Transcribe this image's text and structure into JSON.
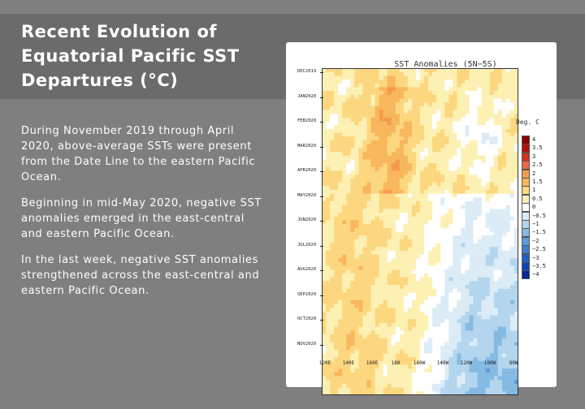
{
  "slide": {
    "title_lines": [
      "Recent Evolution of",
      "Equatorial Pacific SST",
      "Departures (°C)"
    ],
    "bullets": [
      "During November 2019 through April 2020, above-average SSTs were present from the Date Line to the eastern Pacific Ocean.",
      "Beginning in mid-May 2020, negative SST anomalies emerged in the east-central and eastern Pacific Ocean.",
      "In the last week, negative SST anomalies strengthened across the east-central and eastern Pacific Ocean."
    ]
  },
  "figure": {
    "title": "SST Anomalies (5N−5S)",
    "legend_title": "Deg. C",
    "y_labels": [
      "DEC2019",
      "JAN2020",
      "FEB2020",
      "MAR2020",
      "APR2020",
      "MAY2020",
      "JUN2020",
      "JUL2020",
      "AUG2020",
      "SEP2020",
      "OCT2020",
      "NOV2020"
    ],
    "x_labels": [
      "120E",
      "140E",
      "160E",
      "180",
      "160W",
      "140W",
      "120W",
      "100W",
      "80W"
    ],
    "legend": [
      {
        "label": "4",
        "color": "#8b0000"
      },
      {
        "label": "3.5",
        "color": "#b40d0d"
      },
      {
        "label": "3",
        "color": "#d7301f"
      },
      {
        "label": "2.5",
        "color": "#ef6548"
      },
      {
        "label": "2",
        "color": "#f59a4f"
      },
      {
        "label": "1.5",
        "color": "#f8b75c"
      },
      {
        "label": "1",
        "color": "#fcd77f"
      },
      {
        "label": "0.5",
        "color": "#fdf0b3"
      },
      {
        "label": "0",
        "color": "#ffffff"
      },
      {
        "label": "−0.5",
        "color": "#dcecf7"
      },
      {
        "label": "−1",
        "color": "#b3d6ee"
      },
      {
        "label": "−1.5",
        "color": "#85bae3"
      },
      {
        "label": "−2",
        "color": "#5a9bd8"
      },
      {
        "label": "−2.5",
        "color": "#3b7fcf"
      },
      {
        "label": "−3",
        "color": "#1f5fc4"
      },
      {
        "label": "−3.5",
        "color": "#1341b3"
      },
      {
        "label": "−4",
        "color": "#0b2894"
      }
    ]
  }
}
